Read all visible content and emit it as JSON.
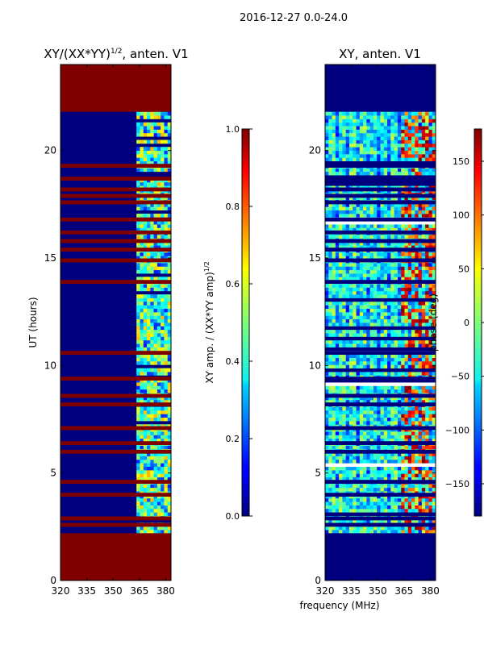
{
  "figure_title": "2016-12-27 0.0-24.0",
  "colors": {
    "background": "#ffffff",
    "axis": "#000000",
    "flag_red": "#800000",
    "flag_blue": "#00007f"
  },
  "chart_data": [
    {
      "type": "heatmap",
      "title_base": "XY/(XX*YY)",
      "title_sup": "1/2",
      "title_suffix": ", anten. V1",
      "xlabel": "",
      "ylabel": "UT (hours)",
      "x_ticks": [
        320,
        335,
        350,
        365,
        380
      ],
      "y_ticks": [
        0,
        5,
        10,
        15,
        20
      ],
      "xlim": [
        320,
        383
      ],
      "ylim": [
        0,
        24
      ],
      "colormap": "jet",
      "colorbar": {
        "label": "XY amp. / (XX*YY amp)",
        "label_sup": "1/2",
        "range": [
          0.0,
          1.0
        ],
        "ticks": [
          "0.0",
          "0.2",
          "0.4",
          "0.6",
          "0.8",
          "1.0"
        ],
        "tick_values": [
          0.0,
          0.2,
          0.4,
          0.6,
          0.8,
          1.0
        ]
      },
      "flagged_hours": [
        [
          0,
          2.2
        ],
        [
          21.8,
          24
        ]
      ],
      "flagged_rows": [
        2.5,
        2.8,
        3.9,
        4.5,
        5.9,
        6.3,
        7.0,
        8.1,
        8.5,
        9.3,
        10.5,
        13.8,
        14.8,
        15.3,
        15.7,
        16.1,
        16.7,
        17.5,
        17.8,
        18.1,
        18.6,
        19.2
      ],
      "active_band_mhz": [
        363,
        383
      ],
      "active_hours": [
        2.2,
        21.8
      ]
    },
    {
      "type": "heatmap",
      "title_base": "XY, anten. V1",
      "xlabel": "frequency (MHz)",
      "ylabel": "",
      "x_ticks": [
        320,
        335,
        350,
        365,
        380
      ],
      "y_ticks": [
        0,
        5,
        10,
        15,
        20
      ],
      "xlim": [
        320,
        383
      ],
      "ylim": [
        0,
        24
      ],
      "colormap": "jet",
      "colorbar": {
        "label": "phase (deg)",
        "range": [
          -180,
          180
        ],
        "ticks": [
          "150",
          "100",
          "50",
          "0",
          "−50",
          "−100",
          "−150"
        ],
        "tick_values": [
          150,
          100,
          50,
          0,
          -50,
          -100,
          -150
        ]
      },
      "flagged_hours": [
        [
          0,
          2.2
        ],
        [
          21.8,
          24
        ]
      ],
      "flagged_rows": [
        2.5,
        2.8,
        3.9,
        4.5,
        5.9,
        6.3,
        7.0,
        8.1,
        8.5,
        9.3,
        10.5,
        13.8,
        14.8,
        15.3,
        15.7,
        16.1,
        16.7,
        17.5,
        17.8,
        18.1,
        18.6,
        19.2
      ],
      "active_hours": [
        2.2,
        21.8
      ]
    }
  ]
}
